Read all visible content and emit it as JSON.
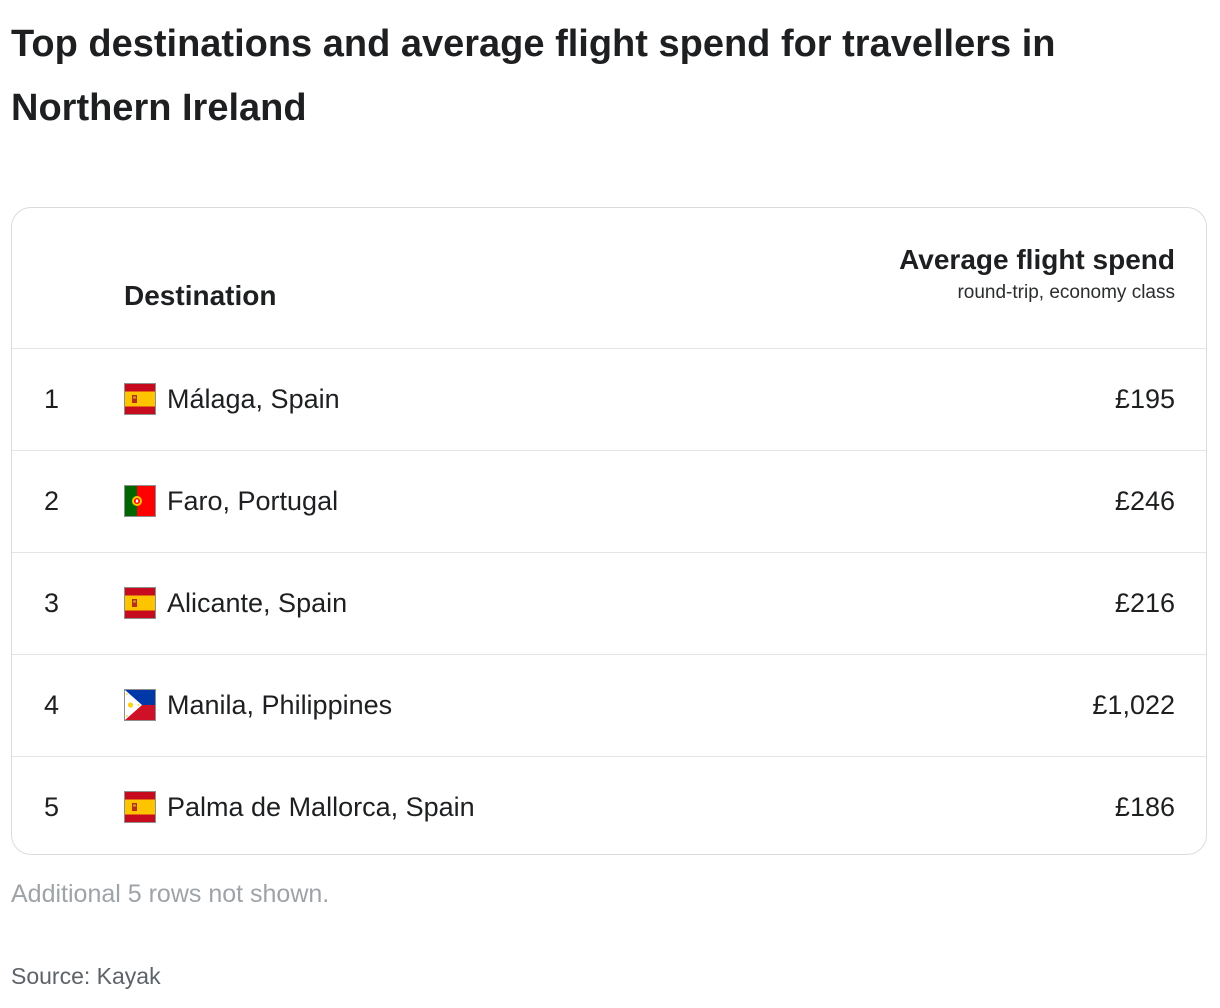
{
  "title": "Top destinations and average flight spend for travellers in Northern Ireland",
  "table": {
    "headers": {
      "destination": "Destination",
      "spend_title": "Average flight spend",
      "spend_subtitle": "round-trip, economy class"
    }
  },
  "chart_data": {
    "type": "table",
    "columns": [
      "",
      "Destination",
      "Average flight spend"
    ],
    "rows": [
      {
        "rank": "1",
        "destination": "Málaga, Spain",
        "flag_icon": "spain-flag-icon",
        "spend": "£195",
        "value": 195
      },
      {
        "rank": "2",
        "destination": "Faro, Portugal",
        "flag_icon": "portugal-flag-icon",
        "spend": "£246",
        "value": 246
      },
      {
        "rank": "3",
        "destination": "Alicante, Spain",
        "flag_icon": "spain-flag-icon",
        "spend": "£216",
        "value": 216
      },
      {
        "rank": "4",
        "destination": "Manila, Philippines",
        "flag_icon": "philippines-flag-icon",
        "spend": "£1,022",
        "value": 1022
      },
      {
        "rank": "5",
        "destination": "Palma de Mallorca, Spain",
        "flag_icon": "spain-flag-icon",
        "spend": "£186",
        "value": 186
      }
    ]
  },
  "footer": {
    "note": "Additional 5 rows not shown.",
    "source": "Source: Kayak"
  },
  "colors": {
    "text": "#1d1f21",
    "border": "#d9dcdf",
    "note": "#9ea3a8",
    "source": "#5d6368"
  }
}
